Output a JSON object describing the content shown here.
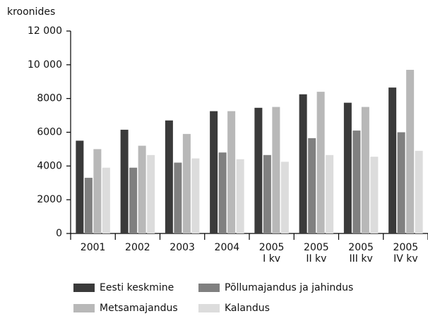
{
  "chart_data": {
    "type": "bar",
    "ylabel": "kroonides",
    "categories": [
      "2001",
      "2002",
      "2003",
      "2004",
      "2005\nI kv",
      "2005\nII kv",
      "2005\nIII kv",
      "2005\nIV kv"
    ],
    "series": [
      {
        "name": "Eesti keskmine",
        "color": "#3a3a3a",
        "values": [
          5500,
          6150,
          6700,
          7250,
          7450,
          8250,
          7750,
          8650
        ]
      },
      {
        "name": "Põllumajandus ja jahindus",
        "color": "#808080",
        "values": [
          3300,
          3900,
          4200,
          4800,
          4650,
          5650,
          6100,
          6000
        ]
      },
      {
        "name": "Metsamajandus",
        "color": "#b8b8b8",
        "values": [
          5000,
          5200,
          5900,
          7250,
          7500,
          8400,
          7500,
          9700
        ]
      },
      {
        "name": "Kalandus",
        "color": "#dcdcdc",
        "values": [
          3900,
          4650,
          4450,
          4400,
          4250,
          4650,
          4550,
          4900
        ]
      }
    ],
    "ylim": [
      0,
      12000
    ],
    "yticks": [
      0,
      2000,
      4000,
      6000,
      8000,
      {
        "value": 10000,
        "label": "10 000"
      },
      {
        "value": 12000,
        "label": "12 000"
      }
    ]
  }
}
